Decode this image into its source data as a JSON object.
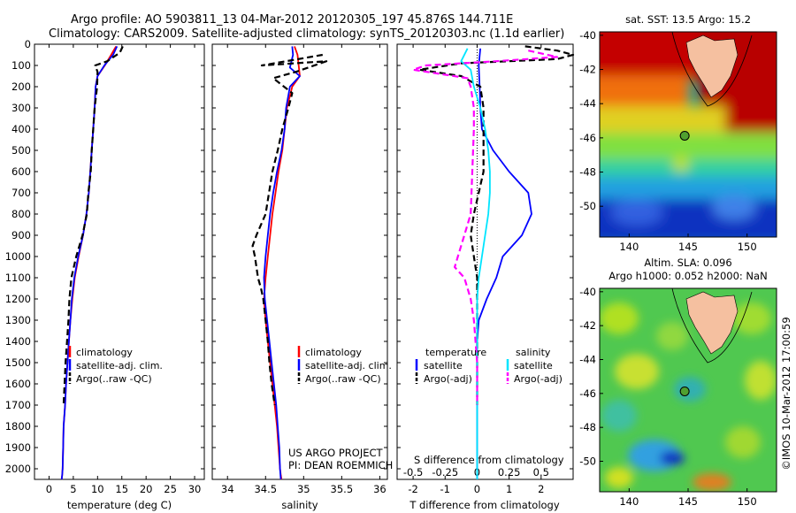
{
  "header": {
    "line1": "Argo profile: AO 5903811_13 04-Mar-2012 20120305_197 45.876S 144.711E",
    "line2": "Climatology: CARS2009. Satellite-adjusted climatology: synTS_20120303.nc (1.1d earlier)"
  },
  "colors": {
    "climatology": "#ff0000",
    "satellite": "#0000ff",
    "argo": "#000000",
    "sal_satellite": "#00e5ff",
    "sal_argo": "#ff00ff",
    "land": "#f5c0a0"
  },
  "chart_data": [
    {
      "type": "line",
      "id": "temperature",
      "xlabel": "temperature (deg C)",
      "ylabel": "",
      "xlim": [
        -3,
        32
      ],
      "ylim": [
        2050,
        0
      ],
      "xticks": [
        "0",
        "5",
        "10",
        "15",
        "20",
        "25",
        "30"
      ],
      "yticks": [
        "0",
        "100",
        "200",
        "300",
        "400",
        "500",
        "600",
        "700",
        "800",
        "900",
        "1000",
        "1100",
        "1200",
        "1300",
        "1400",
        "1500",
        "1600",
        "1700",
        "1800",
        "1900",
        "2000"
      ],
      "legend": [
        "climatology",
        "satellite-adj. clim.",
        "Argo(..raw -QC)"
      ],
      "legend_placement": "lower-right",
      "series": [
        {
          "name": "climatology",
          "color": "#ff0000",
          "dash": "solid",
          "x": [
            13.8,
            12.8,
            11.5,
            10.0,
            9.6,
            9.4,
            9.1,
            8.8,
            8.5,
            8.2,
            7.7,
            7.0,
            6.1,
            5.3,
            4.8,
            4.4,
            4.1,
            3.8,
            3.5,
            3.3,
            3.0,
            2.9,
            2.8,
            2.7,
            2.6
          ],
          "y": [
            10,
            50,
            100,
            150,
            200,
            300,
            400,
            500,
            600,
            700,
            800,
            900,
            1000,
            1100,
            1200,
            1300,
            1400,
            1500,
            1600,
            1700,
            1800,
            1900,
            2000,
            2030,
            2050
          ]
        },
        {
          "name": "satellite-adj. clim.",
          "color": "#0000ff",
          "dash": "solid",
          "x": [
            14.0,
            13.2,
            11.4,
            10.0,
            9.6,
            9.4,
            9.1,
            8.8,
            8.5,
            8.2,
            7.7,
            7.0,
            6.0,
            5.2,
            4.7,
            4.4,
            4.1,
            3.8,
            3.5,
            3.3,
            3.0,
            2.9,
            2.8,
            2.7,
            2.6
          ],
          "y": [
            10,
            50,
            100,
            150,
            200,
            300,
            400,
            500,
            600,
            700,
            800,
            900,
            1000,
            1100,
            1200,
            1300,
            1400,
            1500,
            1600,
            1700,
            1800,
            1900,
            2000,
            2030,
            2050
          ]
        },
        {
          "name": "Argo(..raw -QC)",
          "color": "#000000",
          "dash": "dash",
          "x": [
            15.2,
            14.6,
            12.0,
            9.5,
            10.0,
            9.9,
            9.4,
            9.1,
            8.8,
            8.6,
            8.1,
            7.8,
            6.9,
            5.6,
            4.6,
            4.2,
            4.0,
            3.7,
            3.4,
            3.2,
            3.0
          ],
          "y": [
            10,
            40,
            80,
            100,
            130,
            200,
            300,
            400,
            500,
            600,
            700,
            800,
            900,
            1000,
            1100,
            1200,
            1300,
            1400,
            1500,
            1600,
            1700
          ]
        }
      ]
    },
    {
      "type": "line",
      "id": "salinity",
      "xlabel": "salinity",
      "ylabel": "",
      "xlim": [
        33.8,
        36.1
      ],
      "ylim": [
        2050,
        0
      ],
      "xticks": [
        "34",
        "34.5",
        "35",
        "35.5",
        "36"
      ],
      "legend": [
        "climatology",
        "satellite-adj. clim.",
        "Argo(..raw -QC)"
      ],
      "legend_placement": "lower-right",
      "annotation": [
        "US ARGO PROJECT",
        "PI: DEAN ROEMMICH"
      ],
      "series": [
        {
          "name": "climatology",
          "color": "#ff0000",
          "dash": "solid",
          "x": [
            34.88,
            34.92,
            34.95,
            34.85,
            34.78,
            34.75,
            34.72,
            34.67,
            34.63,
            34.59,
            34.56,
            34.53,
            34.5,
            34.48,
            34.5,
            34.53,
            34.56,
            34.59,
            34.62,
            34.65,
            34.67,
            34.69,
            34.7,
            34.71
          ],
          "y": [
            10,
            50,
            150,
            200,
            300,
            400,
            500,
            600,
            700,
            800,
            900,
            1000,
            1100,
            1200,
            1300,
            1400,
            1500,
            1600,
            1700,
            1800,
            1900,
            2000,
            2030,
            2050
          ]
        },
        {
          "name": "satellite-adj. clim.",
          "color": "#0000ff",
          "dash": "solid",
          "x": [
            34.85,
            34.86,
            34.82,
            34.95,
            34.82,
            34.77,
            34.75,
            34.71,
            34.65,
            34.6,
            34.56,
            34.53,
            34.5,
            34.48,
            34.49,
            34.52,
            34.55,
            34.58,
            34.61,
            34.64,
            34.66,
            34.68,
            34.69,
            34.7
          ],
          "y": [
            10,
            50,
            110,
            150,
            200,
            300,
            400,
            500,
            600,
            700,
            800,
            900,
            1000,
            1100,
            1200,
            1300,
            1400,
            1500,
            1600,
            1700,
            1800,
            1900,
            2000,
            2050
          ]
        },
        {
          "name": "Argo(..raw -QC)",
          "color": "#000000",
          "dash": "dash",
          "x": [
            35.25,
            34.45,
            35.3,
            34.9,
            34.6,
            34.85,
            34.8,
            34.72,
            34.66,
            34.59,
            34.5,
            34.38,
            34.33,
            34.36,
            34.4,
            34.44,
            34.47,
            34.5,
            34.53,
            34.55,
            34.58,
            34.62
          ],
          "y": [
            50,
            100,
            80,
            130,
            160,
            230,
            300,
            400,
            500,
            600,
            800,
            900,
            950,
            1000,
            1100,
            1150,
            1200,
            1300,
            1400,
            1500,
            1600,
            1700
          ]
        }
      ]
    },
    {
      "type": "line",
      "id": "difference",
      "xlabel": "T difference from climatology",
      "xlabel_top": "S difference from climatology",
      "xlim": [
        -2.5,
        3.0
      ],
      "ylim": [
        2050,
        0
      ],
      "xticks": [
        "-2",
        "-1",
        "0",
        "1",
        "2"
      ],
      "xticks_top": [
        "-0.5",
        "-0.25",
        "0",
        "0.25",
        "0.5"
      ],
      "legend_left_title": "temperature",
      "legend_right_title": "salinity",
      "legend_left": [
        "satellite",
        "Argo(-adj)"
      ],
      "legend_right": [
        "satellite",
        "Argo(-adj)"
      ],
      "series": [
        {
          "name": "temperature satellite",
          "color": "#0000ff",
          "dash": "solid",
          "x": [
            0.1,
            0.05,
            0.08,
            0.1,
            0.15,
            0.5,
            1.0,
            1.6,
            1.7,
            1.4,
            0.8,
            0.6,
            0.3,
            0.05,
            0.0,
            0.0,
            0.0,
            0.0,
            0.0,
            0.0
          ],
          "y": [
            20,
            100,
            200,
            300,
            400,
            500,
            600,
            700,
            800,
            900,
            1000,
            1100,
            1200,
            1300,
            1400,
            1500,
            1600,
            1700,
            1800,
            2050
          ]
        },
        {
          "name": "temperature Argo(-adj)",
          "color": "#000000",
          "dash": "dash",
          "x": [
            1.5,
            2.5,
            3.0,
            2.5,
            -0.5,
            -1.8,
            -0.5,
            0.1,
            0.2,
            0.2,
            0.2,
            0.2,
            -0.1,
            -0.2,
            -0.1,
            0.0,
            0.0,
            0.0,
            0.0,
            0.0
          ],
          "y": [
            10,
            30,
            50,
            70,
            90,
            120,
            150,
            200,
            300,
            400,
            500,
            600,
            800,
            900,
            1000,
            1100,
            1200,
            1400,
            1600,
            1700
          ]
        },
        {
          "name": "salinity satellite",
          "color": "#00e5ff",
          "dash": "solid",
          "x": [
            -0.3,
            -0.5,
            -0.2,
            -0.1,
            0.1,
            0.25,
            0.35,
            0.4,
            0.4,
            0.35,
            0.25,
            0.15,
            0.05,
            0.0,
            0.0,
            0.0,
            0.0,
            0.0,
            0.0
          ],
          "y": [
            20,
            80,
            120,
            200,
            300,
            400,
            500,
            600,
            700,
            800,
            900,
            1000,
            1100,
            1200,
            1300,
            1500,
            1700,
            1900,
            2050
          ]
        },
        {
          "name": "salinity Argo(-adj)",
          "color": "#ff00ff",
          "dash": "dash",
          "x": [
            1.6,
            2.5,
            0.6,
            -1.6,
            -2.0,
            -0.3,
            -0.2,
            -0.1,
            -0.1,
            -0.15,
            -0.2,
            -0.4,
            -0.6,
            -0.7,
            -0.4,
            -0.2,
            -0.1,
            0.0,
            0.0
          ],
          "y": [
            30,
            60,
            80,
            100,
            120,
            160,
            200,
            300,
            400,
            600,
            800,
            900,
            1000,
            1050,
            1100,
            1200,
            1300,
            1500,
            1700
          ]
        }
      ]
    },
    {
      "type": "heatmap",
      "id": "sst_map",
      "title": "sat. SST: 13.5  Argo: 15.2",
      "xlim": [
        137.5,
        152.5
      ],
      "ylim": [
        -51.8,
        -39.8
      ],
      "xticks": [
        "140",
        "145",
        "150"
      ],
      "yticks": [
        "-40",
        "-42",
        "-44",
        "-46",
        "-48",
        "-50"
      ],
      "argo_position": {
        "lon": 144.711,
        "lat": -45.876
      }
    },
    {
      "type": "heatmap",
      "id": "sla_map",
      "title_line1": "Altim. SLA: 0.096",
      "title_line2": "Argo h1000: 0.052 h2000: NaN",
      "xlim": [
        137.5,
        152.5
      ],
      "ylim": [
        -51.8,
        -39.8
      ],
      "xticks": [
        "140",
        "145",
        "150"
      ],
      "yticks": [
        "-40",
        "-42",
        "-44",
        "-46",
        "-48",
        "-50"
      ],
      "side_label": "©IMOS 10-Mar-2012 17:00:59",
      "argo_position": {
        "lon": 144.711,
        "lat": -45.876
      }
    }
  ]
}
